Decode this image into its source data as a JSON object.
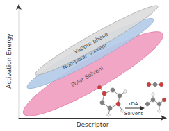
{
  "chart_data": {
    "type": "ellipse_regions",
    "x_label": "Descriptor",
    "y_label": "Activation Energy",
    "xlim": [
      0,
      100
    ],
    "ylim": [
      0,
      100
    ],
    "grid": false,
    "tick_labels": false,
    "series": [
      {
        "name": "Vapour phase",
        "color": "#dcdcdc",
        "x": [
          11.3,
          94.3
        ],
        "y": [
          38.2,
          98.3
        ],
        "width": 12.7
      },
      {
        "name": "Non-polar Solvent",
        "color": "#b3cbe8",
        "x": [
          5.7,
          91.5
        ],
        "y": [
          26.6,
          86.7
        ],
        "width": 16
      },
      {
        "name": "Polar Solvent",
        "color": "#f19cbf",
        "x": [
          3.3,
          97.6
        ],
        "y": [
          3.5,
          74
        ],
        "width": 26.6
      }
    ],
    "annotations": [
      "rDA",
      "Solvent"
    ]
  }
}
